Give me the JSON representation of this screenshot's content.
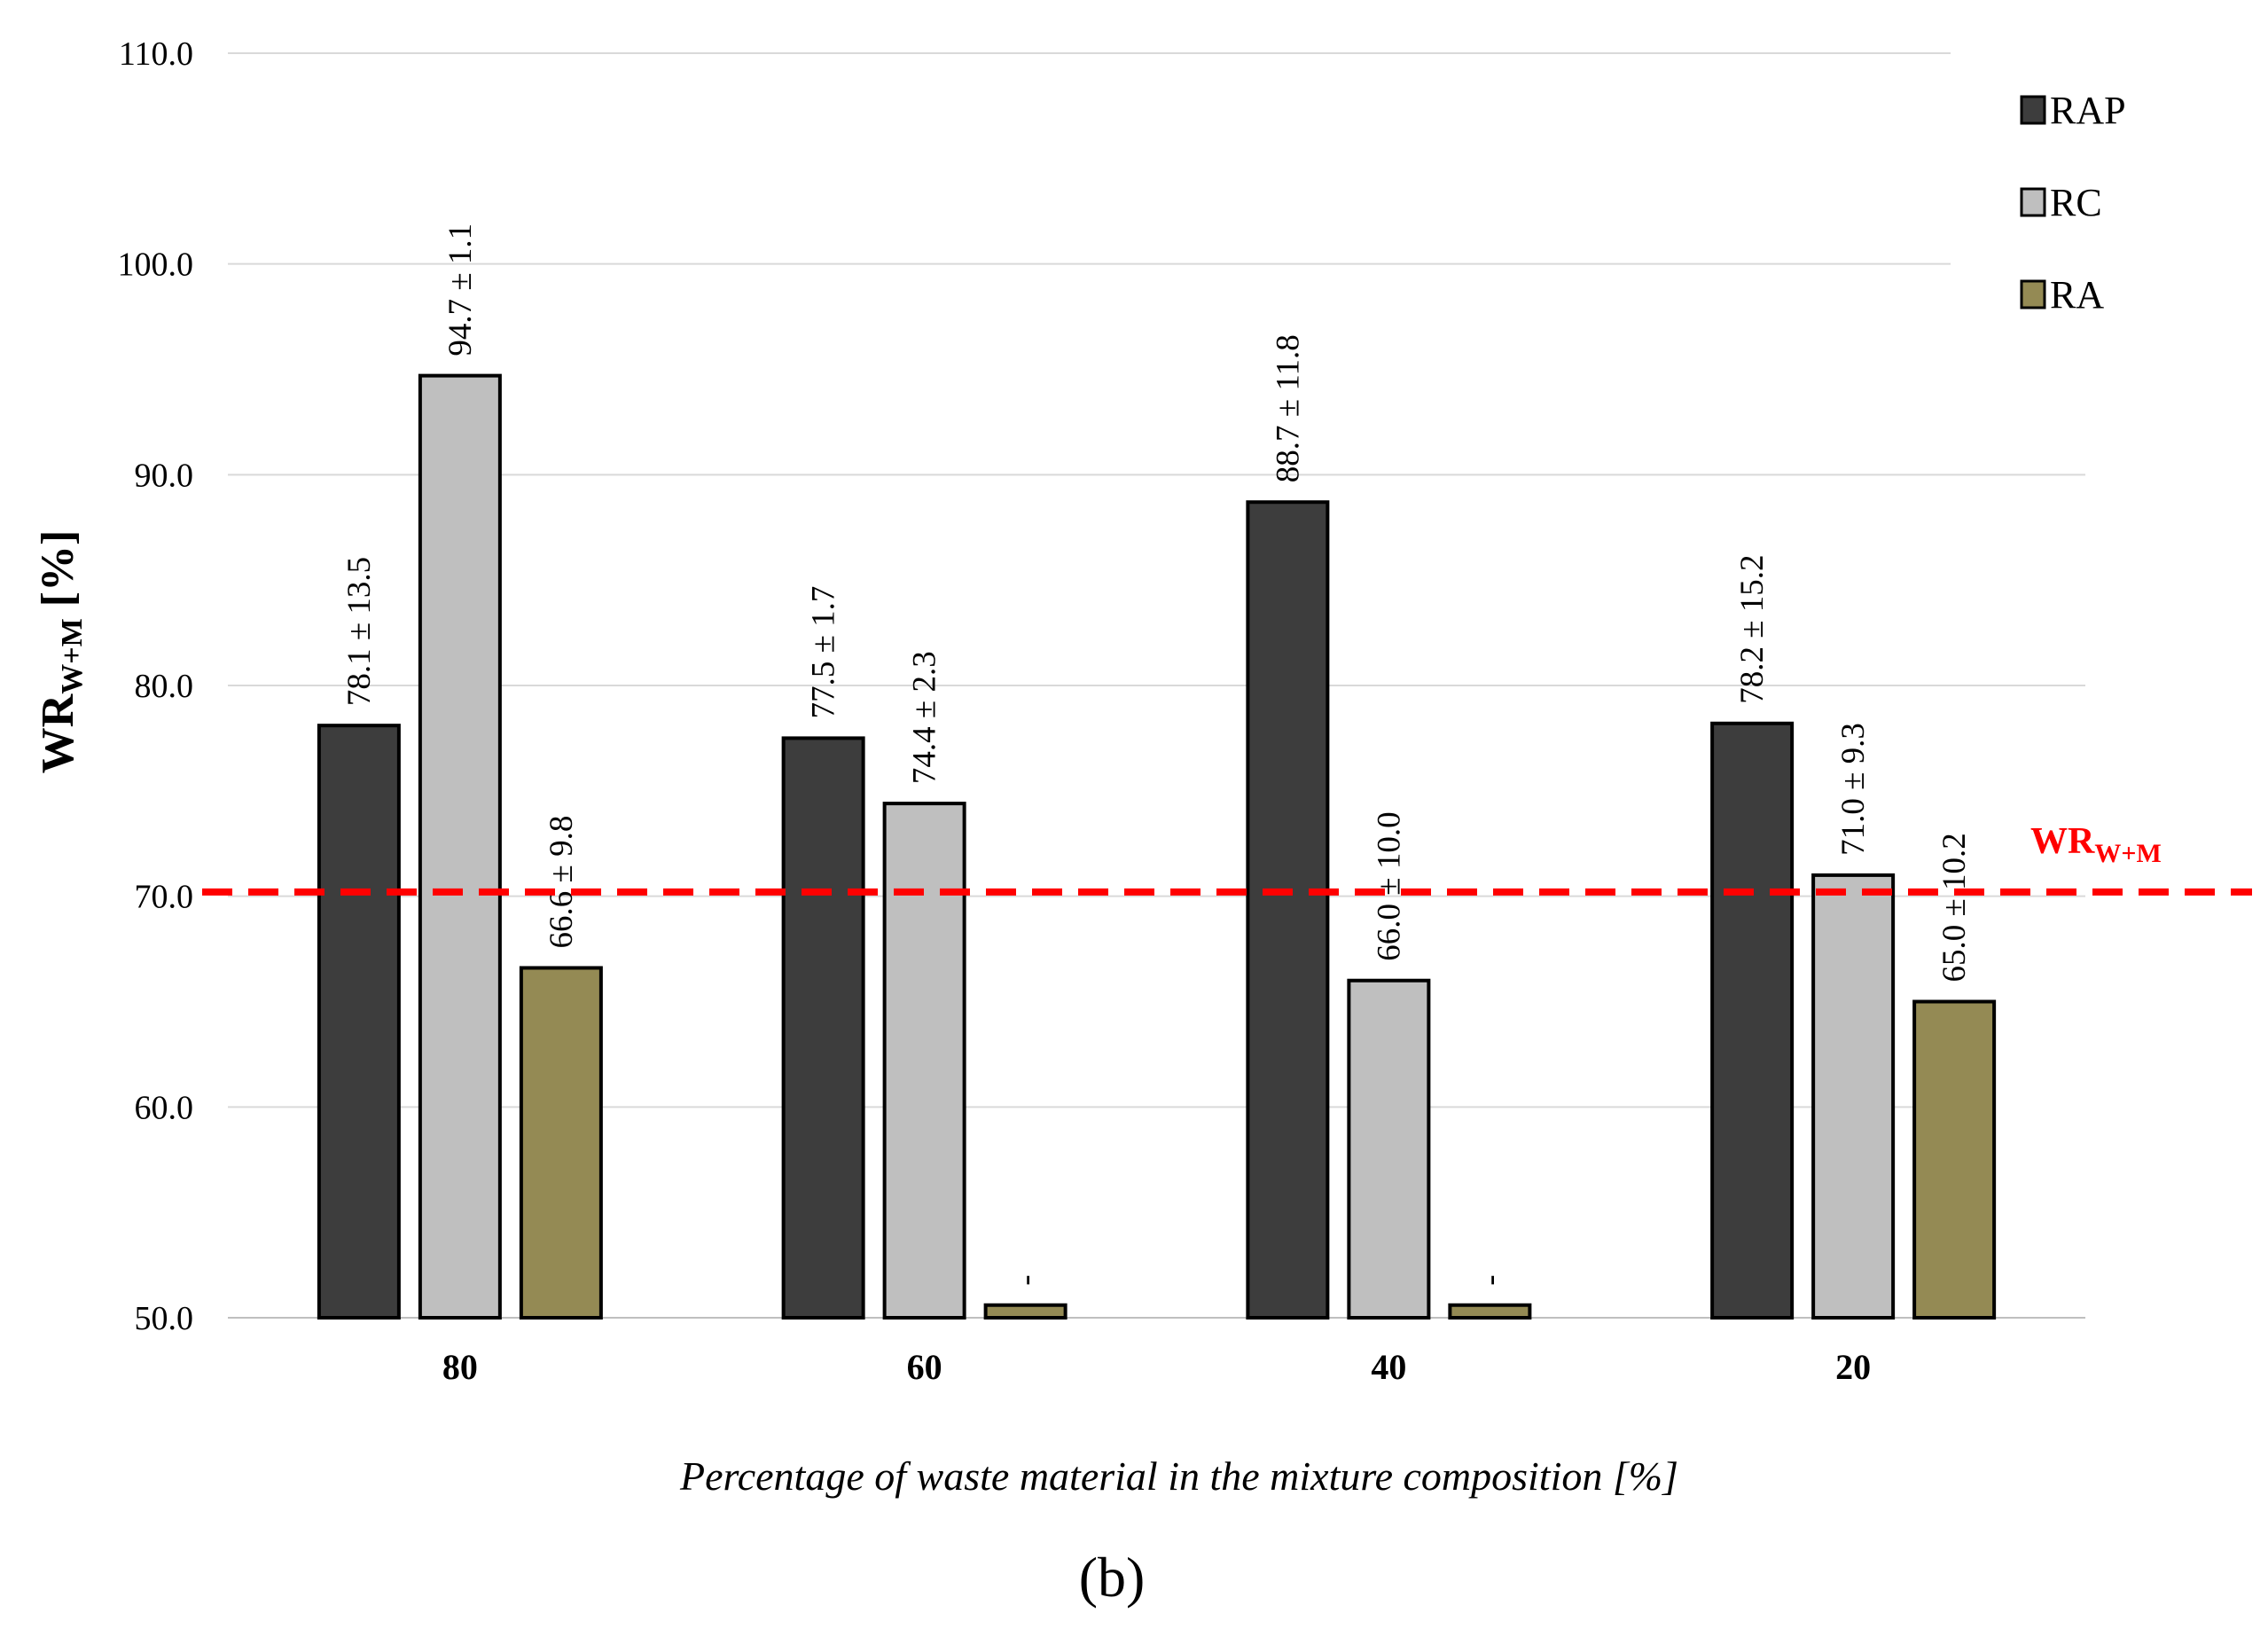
{
  "chart_data": {
    "type": "bar",
    "categories": [
      "80",
      "60",
      "40",
      "20"
    ],
    "series": [
      {
        "name": "RAP",
        "color": "#3d3d3d",
        "values": [
          78.1,
          77.5,
          88.7,
          78.2
        ],
        "labels": [
          "78.1 ± 13.5",
          "77.5 ± 1.7",
          "88.7 ± 11.8",
          "78.2 ± 15.2"
        ]
      },
      {
        "name": "RC",
        "color": "#bfbfbf",
        "values": [
          94.7,
          74.4,
          66.0,
          71.0
        ],
        "labels": [
          "94.7 ± 1.1",
          "74.4 ± 2.3",
          "66.0 ± 10.0",
          "71.0 ± 9.3"
        ]
      },
      {
        "name": "RA",
        "color": "#948a54",
        "values": [
          66.6,
          50.6,
          50.6,
          65.0
        ],
        "labels": [
          "66.6 ± 9.8",
          "-",
          "-",
          "65.0 ± 10.2"
        ]
      }
    ],
    "ylim": [
      50.0,
      110.0
    ],
    "yticks": [
      "50.0",
      "60.0",
      "70.0",
      "80.0",
      "90.0",
      "100.0",
      "110.0"
    ],
    "ytick_values": [
      50,
      60,
      70,
      80,
      90,
      100,
      110
    ],
    "ylabel_main": "WR",
    "ylabel_sub": "W+M",
    "ylabel_suffix": " [%]",
    "xlabel": "Percentage of waste material in the mixture composition [%]",
    "reference_line": {
      "value": 70.2,
      "label_main": "WR",
      "label_sub": "W+M",
      "color": "#ff0000"
    },
    "legend_position": "top-right",
    "grid": true,
    "panel_label": "(b)"
  }
}
